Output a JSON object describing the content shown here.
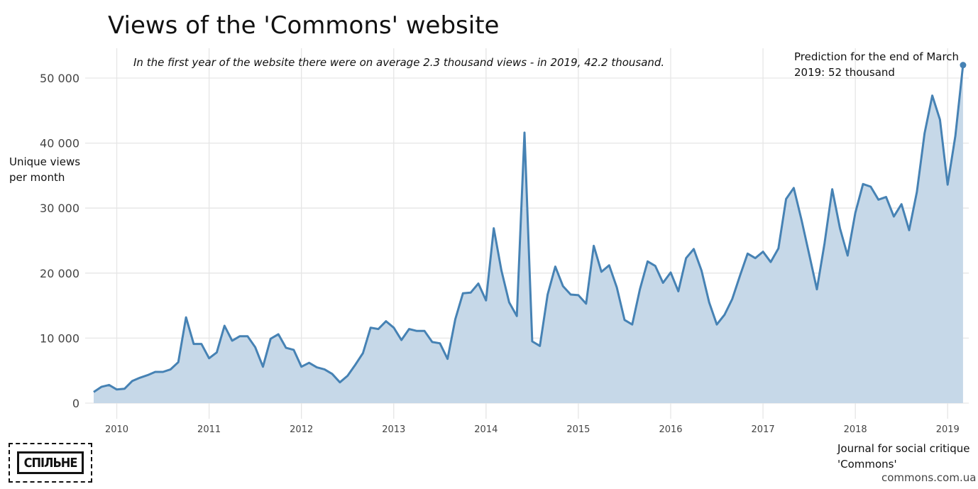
{
  "colors": {
    "line": "#4682b4",
    "area": "#c6d8e8",
    "grid": "#e6e6e6",
    "text": "#111111"
  },
  "chart_data": {
    "type": "area",
    "title": "Views of the 'Commons' website",
    "subtitle": "In the first year of the website there were on average 2.3 thousand views - in 2019, 42.2 thousand.",
    "ylabel": "Unique views per month",
    "xlabel": "",
    "ylim": [
      0,
      55000
    ],
    "yticks": [
      0,
      10000,
      20000,
      30000,
      40000,
      50000
    ],
    "ytick_labels": [
      "0",
      "10 000",
      "20 000",
      "30 000",
      "40 000",
      "50 000"
    ],
    "xticks": [
      2010,
      2011,
      2012,
      2013,
      2014,
      2015,
      2016,
      2017,
      2018,
      2019
    ],
    "xtick_labels": [
      "2010",
      "2011",
      "2012",
      "2013",
      "2014",
      "2015",
      "2016",
      "2017",
      "2018",
      "2019"
    ],
    "x_start": "2009-10",
    "x_frequency": "monthly",
    "grid": true,
    "legend": "none",
    "series": [
      {
        "values": [
          1700,
          2500,
          2800,
          2100,
          2200,
          3400,
          3900,
          4300,
          4800,
          4800,
          5200,
          6300,
          13200,
          9100,
          9100,
          6900,
          7800,
          11900,
          9600,
          10300,
          10300,
          8600,
          5600,
          9900,
          10600,
          8500,
          8200,
          5600,
          6200,
          5500,
          5200,
          4500,
          3200,
          4200,
          5900,
          7700,
          11600,
          11400,
          12600,
          11600,
          9700,
          11400,
          11100,
          11100,
          9400,
          9200,
          6800,
          12900,
          16900,
          17000,
          18400,
          15800,
          26900,
          20400,
          15500,
          13400,
          41600,
          9500,
          8800,
          16700,
          21000,
          18000,
          16700,
          16600,
          15300,
          24200,
          20200,
          21200,
          17800,
          12800,
          12100,
          17500,
          21800,
          21100,
          18500,
          20100,
          17200,
          22300,
          23700,
          20400,
          15500,
          12100,
          13600,
          16000,
          19600,
          23000,
          22300,
          23300,
          21700,
          23800,
          31400,
          33100,
          28200,
          22900,
          17500,
          24600,
          32900,
          26900,
          22700,
          29300,
          33700,
          33300,
          31300,
          31700,
          28700,
          30600,
          26600,
          32500,
          41500,
          47300,
          43600,
          33600,
          41100,
          52000
        ]
      }
    ],
    "annotations": [
      {
        "text": "Prediction for the end of March 2019: 52 thousand",
        "x": "2019-03",
        "y": 52000
      }
    ]
  },
  "footer": {
    "journal": "Journal for social critique 'Commons'",
    "site": "commons.com.ua",
    "logo_text": "СПІЛЬНЕ"
  }
}
